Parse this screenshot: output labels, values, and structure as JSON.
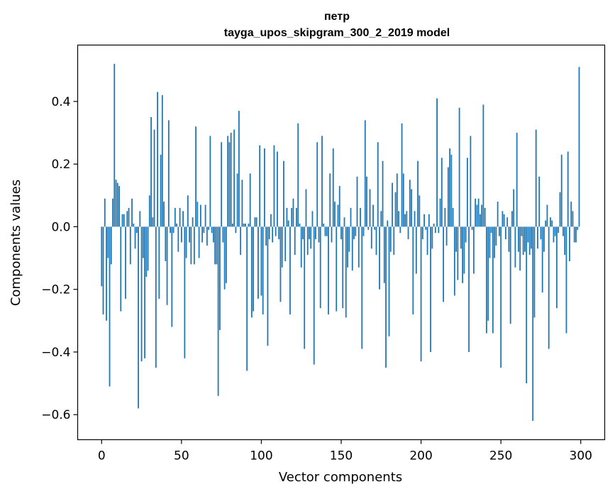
{
  "chart_data": {
    "type": "bar",
    "title_line1": "петр",
    "title_line2": "tayga_upos_skipgram_300_2_2019 model",
    "xlabel": "Vector components",
    "ylabel": "Components values",
    "xlim": [
      -15,
      315
    ],
    "ylim": [
      -0.68,
      0.58
    ],
    "xticks": [
      0,
      50,
      100,
      150,
      200,
      250,
      300
    ],
    "xtick_labels": [
      "0",
      "50",
      "100",
      "150",
      "200",
      "250",
      "300"
    ],
    "yticks": [
      -0.6,
      -0.4,
      -0.2,
      0.0,
      0.2,
      0.4
    ],
    "ytick_labels": [
      "−0.6",
      "−0.4",
      "−0.2",
      "0.0",
      "0.2",
      "0.4"
    ],
    "bar_color": "#1f77b4",
    "values": [
      -0.19,
      -0.28,
      0.09,
      -0.3,
      -0.1,
      -0.51,
      -0.12,
      0.09,
      0.52,
      0.15,
      0.14,
      0.13,
      -0.27,
      0.04,
      0.04,
      -0.23,
      0.05,
      0.06,
      -0.12,
      0.09,
      0.01,
      -0.07,
      -0.02,
      -0.58,
      0.05,
      -0.43,
      -0.1,
      -0.42,
      -0.16,
      -0.14,
      0.1,
      0.35,
      0.03,
      0.31,
      -0.45,
      0.43,
      -0.23,
      0.23,
      0.42,
      0.08,
      -0.11,
      -0.25,
      0.34,
      -0.02,
      -0.32,
      -0.02,
      0.06,
      0.01,
      -0.08,
      0.06,
      -0.05,
      0.05,
      -0.42,
      -0.1,
      0.1,
      -0.05,
      -0.12,
      0.03,
      -0.12,
      0.32,
      0.08,
      -0.1,
      0.07,
      -0.05,
      -0.02,
      0.07,
      -0.06,
      -0.01,
      0.29,
      -0.02,
      -0.05,
      -0.12,
      -0.12,
      -0.54,
      -0.33,
      0.27,
      -0.05,
      -0.2,
      -0.18,
      0.29,
      0.27,
      0.3,
      0.01,
      0.31,
      -0.02,
      0.17,
      0.37,
      -0.09,
      0.15,
      0.01,
      0.01,
      -0.46,
      0.01,
      0.17,
      -0.29,
      -0.27,
      0.03,
      0.03,
      -0.23,
      0.26,
      -0.22,
      -0.28,
      0.25,
      -0.06,
      -0.38,
      -0.04,
      0.04,
      -0.05,
      0.26,
      -0.03,
      0.24,
      -0.04,
      -0.24,
      -0.13,
      0.21,
      -0.11,
      0.06,
      0.02,
      -0.28,
      0.06,
      0.09,
      -0.09,
      0.06,
      0.33,
      0.01,
      -0.13,
      -0.04,
      -0.39,
      0.12,
      -0.09,
      -0.04,
      -0.07,
      0.05,
      -0.44,
      -0.04,
      0.27,
      -0.05,
      -0.26,
      0.29,
      0.01,
      -0.03,
      -0.03,
      -0.28,
      0.17,
      -0.05,
      0.25,
      0.08,
      -0.27,
      0.07,
      0.13,
      -0.04,
      -0.26,
      0.03,
      -0.29,
      -0.13,
      -0.08,
      0.06,
      -0.14,
      -0.04,
      -0.03,
      0.16,
      -0.13,
      0.06,
      -0.39,
      -0.03,
      0.34,
      0.16,
      -0.01,
      0.12,
      -0.07,
      0.07,
      -0.01,
      -0.09,
      0.27,
      -0.2,
      0.05,
      0.21,
      -0.18,
      -0.45,
      0.02,
      -0.35,
      -0.08,
      0.14,
      -0.09,
      0.11,
      0.17,
      0.05,
      -0.02,
      0.33,
      0.17,
      0.04,
      0.05,
      -0.04,
      0.15,
      0.12,
      -0.28,
      0.05,
      -0.15,
      0.21,
      0.1,
      -0.43,
      -0.04,
      0.04,
      -0.01,
      -0.09,
      0.04,
      -0.4,
      -0.07,
      0.01,
      -0.02,
      0.41,
      -0.02,
      0.09,
      0.22,
      -0.24,
      0.06,
      -0.06,
      0.19,
      0.25,
      0.23,
      0.06,
      -0.22,
      -0.08,
      -0.17,
      0.38,
      -0.07,
      -0.18,
      -0.15,
      -0.05,
      0.22,
      -0.4,
      0.29,
      -0.01,
      -0.15,
      0.09,
      0.07,
      0.09,
      0.04,
      0.07,
      0.39,
      0.06,
      -0.34,
      -0.3,
      -0.1,
      -0.02,
      -0.34,
      -0.1,
      -0.06,
      0.08,
      -0.03,
      -0.45,
      0.05,
      0.04,
      -0.04,
      0.03,
      -0.08,
      -0.31,
      0.05,
      0.12,
      -0.13,
      0.3,
      -0.08,
      -0.14,
      -0.03,
      -0.09,
      -0.08,
      -0.5,
      -0.05,
      -0.09,
      -0.07,
      -0.62,
      -0.29,
      0.31,
      -0.07,
      0.16,
      -0.04,
      -0.21,
      -0.08,
      0.02,
      0.07,
      -0.39,
      0.03,
      0.02,
      -0.05,
      -0.03,
      -0.26,
      -0.02,
      0.11,
      0.23,
      -0.03,
      -0.09,
      -0.34,
      0.24,
      -0.11,
      0.08,
      0.05,
      -0.05,
      -0.05,
      -0.01,
      0.51
    ]
  }
}
